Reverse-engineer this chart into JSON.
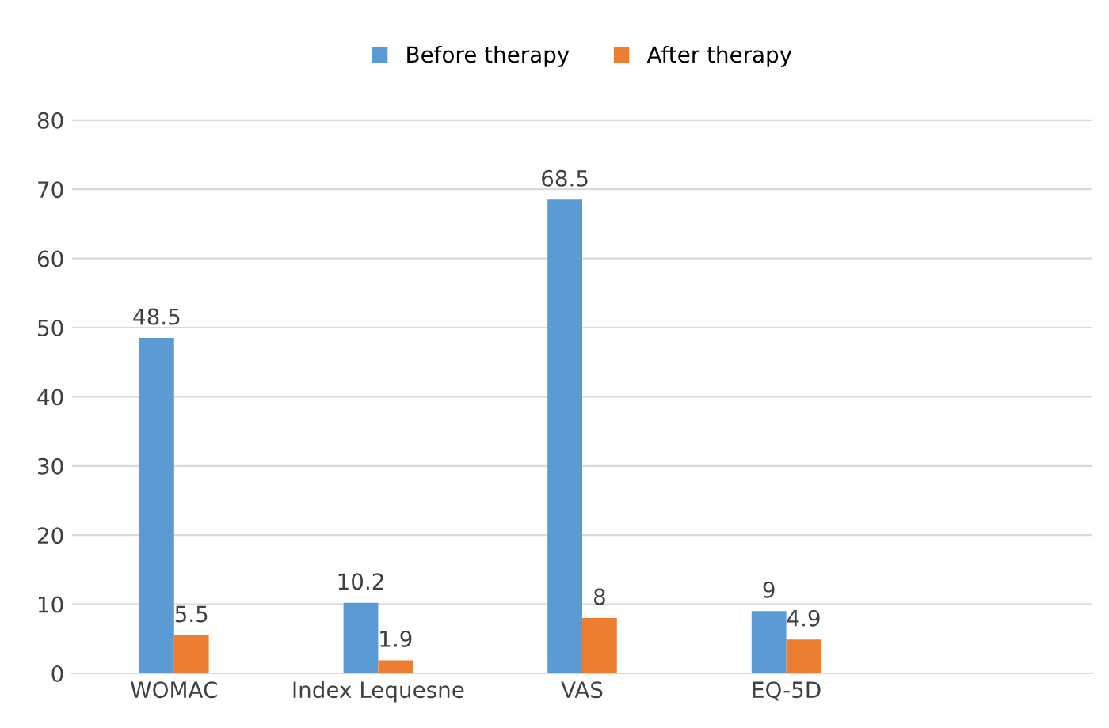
{
  "chart_data": {
    "type": "bar",
    "categories": [
      "WOMAC",
      "Index Lequesne",
      "VAS",
      "EQ-5D",
      null
    ],
    "series": [
      {
        "name": "Before therapy",
        "color": "#5b9bd5",
        "values": [
          48.5,
          10.2,
          68.5,
          9,
          null
        ]
      },
      {
        "name": "After therapy",
        "color": "#ed7d31",
        "values": [
          5.5,
          1.9,
          8,
          4.9,
          null
        ]
      }
    ],
    "ylim": [
      0,
      80
    ],
    "yticks": [
      0,
      10,
      20,
      30,
      40,
      50,
      60,
      70,
      80
    ],
    "grid": "y",
    "legend": "top",
    "data_labels": true
  }
}
